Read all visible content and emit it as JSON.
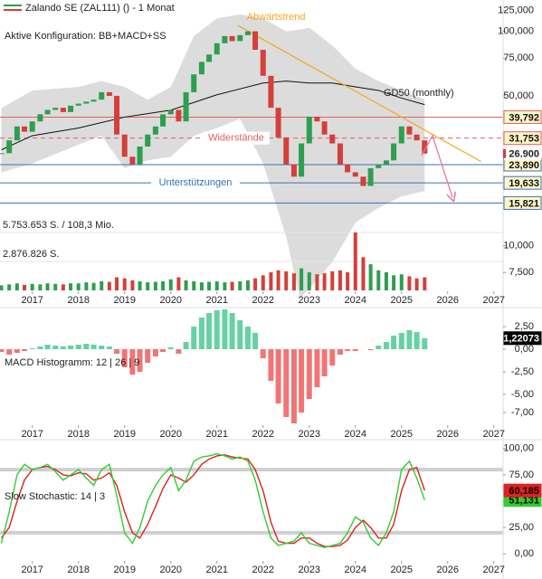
{
  "chart_data": [
    {
      "type": "candlestick",
      "title": "Zalando SE (ZAL111) () - 1 Monat",
      "subtitle": "Aktive Konfiguration: BB+MACD+SS",
      "x": [
        2016.33,
        2016.5,
        2016.67,
        2016.83,
        2017.0,
        2017.17,
        2017.33,
        2017.5,
        2017.67,
        2017.83,
        2018.0,
        2018.17,
        2018.33,
        2018.5,
        2018.67,
        2018.83,
        2019.0,
        2019.17,
        2019.33,
        2019.5,
        2019.67,
        2019.83,
        2020.0,
        2020.17,
        2020.33,
        2020.5,
        2020.67,
        2020.83,
        2021.0,
        2021.17,
        2021.33,
        2021.5,
        2021.67,
        2021.83,
        2022.0,
        2022.17,
        2022.33,
        2022.5,
        2022.67,
        2022.83,
        2023.0,
        2023.17,
        2023.33,
        2023.5,
        2023.67,
        2023.83,
        2024.0,
        2024.17,
        2024.33,
        2024.5,
        2024.67,
        2024.83,
        2025.0,
        2025.17,
        2025.33,
        2025.5
      ],
      "values": [
        27000,
        31000,
        36000,
        34000,
        38000,
        41000,
        43000,
        44000,
        42000,
        45000,
        46000,
        47000,
        48000,
        52000,
        50000,
        33000,
        26000,
        24000,
        29000,
        33000,
        36000,
        41000,
        43000,
        38000,
        52000,
        63000,
        72000,
        78000,
        88000,
        95000,
        90000,
        96000,
        100000,
        82000,
        62000,
        44000,
        32000,
        24000,
        21000,
        30000,
        40000,
        38000,
        33000,
        30000,
        24000,
        22000,
        21000,
        19000,
        23000,
        24000,
        25000,
        30000,
        36000,
        33000,
        31000,
        26900
      ],
      "up_color": "#2e9e4f",
      "down_color": "#d43f3a",
      "last": {
        "value": 26900,
        "label": "26.900"
      },
      "xlim": [
        2016.3,
        2027.2
      ],
      "xticks": [
        2017,
        2018,
        2019,
        2020,
        2021,
        2022,
        2023,
        2024,
        2025,
        2026,
        2027
      ],
      "log_scale": true,
      "ylim": [
        5400,
        140000
      ],
      "yticks": [
        {
          "value": 125000,
          "label": "125,000"
        },
        {
          "value": 100000,
          "label": "100,000"
        },
        {
          "value": 75000,
          "label": "75,000"
        },
        {
          "value": 50000,
          "label": "50,000"
        },
        {
          "value": 10000,
          "label": "10,000"
        },
        {
          "value": 7500,
          "label": "7,500"
        }
      ],
      "bands": {
        "x": [
          2016.33,
          2017,
          2018,
          2018.5,
          2019,
          2019.5,
          2020,
          2020.5,
          2021,
          2021.5,
          2022,
          2022.5,
          2022.8,
          2023,
          2023.5,
          2024,
          2024.5,
          2025,
          2025.5
        ],
        "upper": [
          43800,
          53000,
          55000,
          58600,
          55000,
          48000,
          55000,
          95000,
          115000,
          120000,
          115000,
          100000,
          102000,
          104000,
          86000,
          67000,
          58600,
          53000,
          48000
        ],
        "lower": [
          22000,
          24200,
          29600,
          32600,
          23000,
          25000,
          26000,
          32600,
          35400,
          39000,
          24200,
          11000,
          5700,
          6300,
          8400,
          12800,
          15000,
          17000,
          18000
        ],
        "color": "#dcdcdc"
      },
      "ma": {
        "name": "GD50 (monthly)",
        "x": [
          2016.33,
          2017,
          2018,
          2019,
          2020,
          2021,
          2022,
          2022.5,
          2023,
          2023.5,
          2024,
          2024.5,
          2025,
          2025.5
        ],
        "values": [
          28000,
          32600,
          35400,
          39800,
          42900,
          50600,
          57400,
          58600,
          57400,
          57400,
          55100,
          53000,
          48800,
          45500
        ],
        "color": "#111111"
      },
      "levels": [
        {
          "value": 39792,
          "label": "39,792",
          "color": "#e06060"
        },
        {
          "value": 31753,
          "label": "31,753",
          "color": "#e06060",
          "dashed": true,
          "note": "Widerstände"
        },
        {
          "value": 23890,
          "label": "23,890",
          "color": "#3b6fb6"
        },
        {
          "value": 19633,
          "label": "19,633",
          "color": "#3b6fb6",
          "note": "Unterstützungen"
        },
        {
          "value": 15821,
          "label": "15,821",
          "color": "#3b6fb6"
        }
      ],
      "trend": {
        "label": "Abwärtstrend",
        "x": [
          2021.45,
          2026.72
        ],
        "values": [
          106700,
          24700
        ],
        "color": "#f5a623"
      },
      "volume": {
        "values": [
          500000,
          600000,
          700000,
          550000,
          650000,
          600000,
          700000,
          650000,
          600000,
          700000,
          700000,
          800000,
          750000,
          900000,
          850000,
          1300000,
          1200000,
          1000000,
          900000,
          800000,
          850000,
          900000,
          1100000,
          1300000,
          1000000,
          900000,
          800000,
          850000,
          900000,
          800000,
          850000,
          900000,
          1000000,
          1200000,
          1500000,
          1800000,
          2000000,
          1900000,
          1700000,
          2200000,
          1800000,
          1600000,
          1700000,
          1900000,
          2000000,
          1800000,
          5753653,
          3300000,
          2600000,
          2000000,
          1800000,
          1500000,
          1600000,
          1400000,
          1200000,
          1300000
        ],
        "vlim": [
          0,
          5753653
        ],
        "vticks": [
          {
            "value": 5753653,
            "label": "5.753.653 S. / 108,3 Mio."
          },
          {
            "value": 2876826,
            "label": "2.876.826 S."
          }
        ]
      }
    },
    {
      "type": "bar",
      "title": "MACD Histogramm: 12 | 26 | 9",
      "x": [
        2016.33,
        2016.5,
        2016.67,
        2016.83,
        2017.0,
        2017.17,
        2017.33,
        2017.5,
        2017.67,
        2017.83,
        2018.0,
        2018.17,
        2018.33,
        2018.5,
        2018.67,
        2018.83,
        2019.0,
        2019.17,
        2019.33,
        2019.5,
        2019.67,
        2019.83,
        2020.0,
        2020.17,
        2020.33,
        2020.5,
        2020.67,
        2020.83,
        2021.0,
        2021.17,
        2021.33,
        2021.5,
        2021.67,
        2021.83,
        2022.0,
        2022.17,
        2022.33,
        2022.5,
        2022.67,
        2022.83,
        2023.0,
        2023.17,
        2023.33,
        2023.5,
        2023.67,
        2023.83,
        2024.0,
        2024.17,
        2024.33,
        2024.5,
        2024.67,
        2024.83,
        2025.0,
        2025.17,
        2025.33,
        2025.5
      ],
      "values": [
        -0.3,
        -0.6,
        -0.4,
        -0.2,
        0.1,
        0.3,
        0.5,
        0.4,
        0.3,
        0.4,
        0.5,
        0.6,
        0.5,
        0.4,
        0.3,
        -0.5,
        -2.0,
        -2.8,
        -2.5,
        -1.5,
        -0.8,
        -0.3,
        0.2,
        -0.5,
        0.8,
        2.5,
        3.5,
        4.0,
        4.3,
        4.4,
        4.0,
        3.2,
        2.5,
        1.8,
        -1.0,
        -3.5,
        -6.0,
        -7.5,
        -8.2,
        -7.0,
        -5.5,
        -4.2,
        -3.0,
        -1.8,
        -0.6,
        -0.2,
        -0.2,
        0.0,
        -0.1,
        0.4,
        0.8,
        1.5,
        1.8,
        2.1,
        1.9,
        1.22073
      ],
      "up_color": "#66d1a3",
      "down_color": "#f07575",
      "last": {
        "value": 1.22073,
        "label": "1,22073"
      },
      "xlim": [
        2016.3,
        2027.2
      ],
      "xticks": [
        2017,
        2018,
        2019,
        2020,
        2021,
        2022,
        2023,
        2024,
        2025,
        2026,
        2027
      ],
      "ylim": [
        -9.2,
        4.1
      ],
      "yticks": [
        {
          "value": 2.5,
          "label": "2,50"
        },
        {
          "value": 0,
          "label": "0,00"
        },
        {
          "value": -2.5,
          "label": "-2,50"
        },
        {
          "value": -5,
          "label": "-5,00"
        },
        {
          "value": -7,
          "label": "-7,00"
        }
      ]
    },
    {
      "type": "line",
      "title": "Slow Stochastic: 14 | 3",
      "x": [
        2016.33,
        2016.5,
        2016.67,
        2016.83,
        2017.0,
        2017.17,
        2017.33,
        2017.5,
        2017.67,
        2017.83,
        2018.0,
        2018.17,
        2018.33,
        2018.5,
        2018.67,
        2018.83,
        2019.0,
        2019.17,
        2019.33,
        2019.5,
        2019.67,
        2019.83,
        2020.0,
        2020.17,
        2020.33,
        2020.5,
        2020.67,
        2020.83,
        2021.0,
        2021.17,
        2021.33,
        2021.5,
        2021.67,
        2021.83,
        2022.0,
        2022.17,
        2022.33,
        2022.5,
        2022.67,
        2022.83,
        2023.0,
        2023.17,
        2023.33,
        2023.5,
        2023.67,
        2023.83,
        2024.0,
        2024.17,
        2024.33,
        2024.5,
        2024.67,
        2024.83,
        2025.0,
        2025.17,
        2025.33,
        2025.5
      ],
      "series": [
        {
          "color": "#33cc33",
          "last": {
            "value": 51.131,
            "label": "51,131"
          },
          "values": [
            10,
            40,
            75,
            85,
            80,
            82,
            85,
            78,
            70,
            75,
            80,
            72,
            65,
            80,
            85,
            55,
            20,
            10,
            25,
            50,
            65,
            75,
            82,
            60,
            70,
            88,
            92,
            93,
            95,
            93,
            90,
            92,
            88,
            70,
            40,
            15,
            8,
            10,
            12,
            20,
            10,
            8,
            6,
            8,
            10,
            20,
            35,
            30,
            15,
            8,
            20,
            40,
            80,
            88,
            72,
            51.131
          ]
        },
        {
          "color": "#dd2222",
          "last": {
            "value": 60.185,
            "label": "60,185"
          },
          "values": [
            15,
            25,
            50,
            70,
            80,
            82,
            83,
            80,
            75,
            74,
            77,
            76,
            70,
            72,
            77,
            65,
            40,
            20,
            15,
            28,
            45,
            62,
            75,
            72,
            68,
            75,
            85,
            90,
            93,
            94,
            92,
            91,
            90,
            80,
            60,
            30,
            12,
            10,
            10,
            15,
            15,
            10,
            7,
            7,
            8,
            13,
            25,
            32,
            25,
            15,
            15,
            28,
            60,
            80,
            82,
            60.185
          ]
        }
      ],
      "levels": [
        80,
        20
      ],
      "xlim": [
        2016.3,
        2027.2
      ],
      "xticks": [
        2017,
        2018,
        2019,
        2020,
        2021,
        2022,
        2023,
        2024,
        2025,
        2026,
        2027
      ],
      "ylim": [
        -5,
        105
      ],
      "yticks": [
        {
          "value": 100,
          "label": "100,00"
        },
        {
          "value": 75,
          "label": "75,00"
        },
        {
          "value": 50,
          "label": "50,00"
        },
        {
          "value": 25,
          "label": "25,00"
        },
        {
          "value": 0,
          "label": "0,00"
        }
      ]
    }
  ]
}
